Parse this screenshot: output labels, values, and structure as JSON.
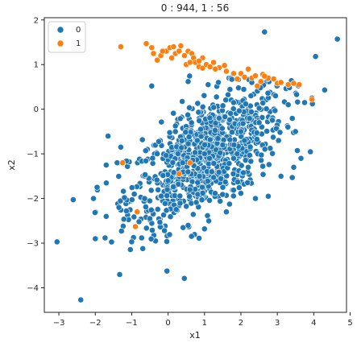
{
  "chart_data": {
    "type": "scatter",
    "title": "0 : 944,    1 : 56",
    "xlabel": "x1",
    "ylabel": "x2",
    "xlim": [
      -3.4,
      4.9
    ],
    "ylim": [
      -4.55,
      2.05
    ],
    "xticks": [
      -3,
      -2,
      -1,
      0,
      1,
      2,
      3,
      4,
      5
    ],
    "yticks": [
      -4,
      -3,
      -2,
      -1,
      0,
      1,
      2
    ],
    "grid": false,
    "legend_position": "top-left",
    "series": [
      {
        "name": "0",
        "color": "#1f77b4",
        "count": 944,
        "sample_points": [
          [
            -3.05,
            -2.97
          ],
          [
            -2.4,
            -4.27
          ],
          [
            4.65,
            1.57
          ],
          [
            2.65,
            1.73
          ],
          [
            4.05,
            1.18
          ],
          [
            4.3,
            0.43
          ],
          [
            3.95,
            0.25
          ],
          [
            3.75,
            0.15
          ],
          [
            -1.95,
            -1.75
          ],
          [
            -2.05,
            -2.0
          ],
          [
            -2.0,
            -2.9
          ],
          [
            -1.0,
            -2.97
          ],
          [
            -0.8,
            -2.52
          ],
          [
            -1.7,
            -2.4
          ],
          [
            -1.35,
            -2.2
          ],
          [
            -1.2,
            -1.98
          ],
          [
            -1.65,
            -0.6
          ],
          [
            -1.3,
            -0.85
          ],
          [
            -1.4,
            -1.2
          ],
          [
            -1.7,
            -1.25
          ],
          [
            -0.45,
            0.52
          ],
          [
            0.55,
            0.62
          ],
          [
            1.1,
            0.55
          ],
          [
            1.75,
            0.67
          ],
          [
            2.3,
            0.6
          ],
          [
            2.95,
            0.3
          ],
          [
            3.3,
            0.1
          ],
          [
            3.5,
            -0.5
          ],
          [
            3.65,
            -1.1
          ],
          [
            3.45,
            -1.3
          ],
          [
            3.1,
            -1.5
          ],
          [
            2.75,
            -1.95
          ],
          [
            2.4,
            -2.0
          ],
          [
            1.6,
            -2.3
          ],
          [
            1.0,
            -2.68
          ],
          [
            0.55,
            -2.6
          ],
          [
            -0.1,
            -2.72
          ],
          [
            -0.5,
            -2.45
          ],
          [
            0.0,
            -1.6
          ],
          [
            0.4,
            -1.2
          ],
          [
            1.0,
            -1.0
          ],
          [
            1.5,
            -0.8
          ],
          [
            2.0,
            -0.5
          ],
          [
            2.5,
            -0.3
          ],
          [
            1.2,
            -1.4
          ],
          [
            0.8,
            -0.7
          ],
          [
            1.8,
            -1.1
          ],
          [
            2.2,
            -1.3
          ],
          [
            0.2,
            -0.5
          ],
          [
            -0.3,
            -1.0
          ],
          [
            0.6,
            -1.8
          ],
          [
            1.4,
            -0.2
          ]
        ]
      },
      {
        "name": "1",
        "color": "#ff7f0e",
        "count": 56,
        "sample_points": [
          [
            -1.3,
            1.4
          ],
          [
            -0.6,
            1.47
          ],
          [
            -0.4,
            1.25
          ],
          [
            -0.3,
            1.1
          ],
          [
            -0.2,
            1.2
          ],
          [
            -0.05,
            1.3
          ],
          [
            0.05,
            1.38
          ],
          [
            0.15,
            1.4
          ],
          [
            0.2,
            1.25
          ],
          [
            0.3,
            1.3
          ],
          [
            0.45,
            1.2
          ],
          [
            0.55,
            1.3
          ],
          [
            0.65,
            1.25
          ],
          [
            0.7,
            1.15
          ],
          [
            0.5,
            1.0
          ],
          [
            0.75,
            1.05
          ],
          [
            0.85,
            0.95
          ],
          [
            0.95,
            0.92
          ],
          [
            1.05,
            1.0
          ],
          [
            1.15,
            0.95
          ],
          [
            1.25,
            1.05
          ],
          [
            1.4,
            0.93
          ],
          [
            1.8,
            0.8
          ],
          [
            2.0,
            0.8
          ],
          [
            2.1,
            0.72
          ],
          [
            2.3,
            0.7
          ],
          [
            2.6,
            0.78
          ],
          [
            2.75,
            0.7
          ],
          [
            2.55,
            0.62
          ],
          [
            3.0,
            0.58
          ],
          [
            3.3,
            0.55
          ],
          [
            3.6,
            0.55
          ],
          [
            3.95,
            0.22
          ],
          [
            0.3,
            -1.45
          ],
          [
            -1.25,
            -1.2
          ],
          [
            -0.85,
            -2.3
          ],
          [
            -0.9,
            -2.63
          ],
          [
            0.6,
            -1.2
          ],
          [
            2.45,
            0.52
          ],
          [
            2.9,
            0.68
          ],
          [
            1.6,
            0.85
          ],
          [
            0.95,
            1.15
          ],
          [
            0.1,
            1.15
          ],
          [
            -0.45,
            1.38
          ],
          [
            2.2,
            0.9
          ],
          [
            1.9,
            0.68
          ],
          [
            3.1,
            0.6
          ],
          [
            0.35,
            1.42
          ],
          [
            1.3,
            0.9
          ],
          [
            2.65,
            0.74
          ],
          [
            0.6,
            1.05
          ],
          [
            -0.15,
            1.3
          ],
          [
            1.55,
            0.98
          ],
          [
            2.4,
            0.75
          ],
          [
            3.45,
            0.58
          ],
          [
            0.85,
            1.08
          ]
        ]
      }
    ]
  }
}
